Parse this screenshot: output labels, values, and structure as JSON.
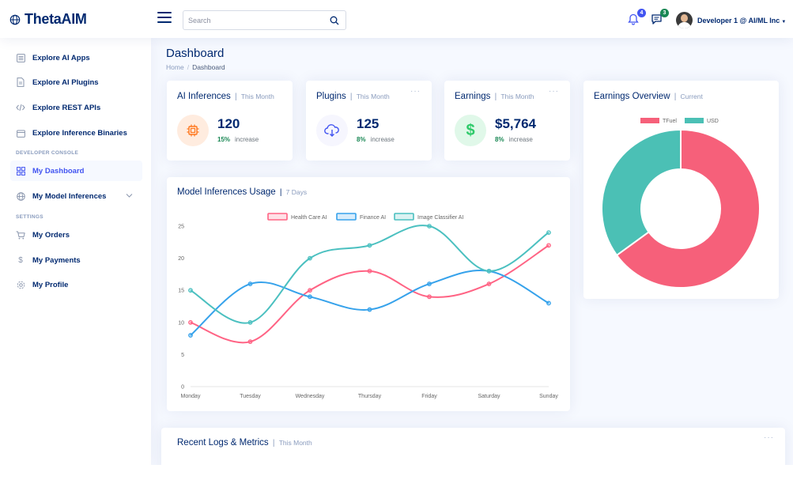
{
  "header": {
    "logo_text": "ThetaAIM",
    "search_placeholder": "Search",
    "notifications_count": "4",
    "messages_count": "3",
    "user_name": "Developer 1 @ AI/ML Inc"
  },
  "sidebar": {
    "items": [
      {
        "label": "Explore AI Apps"
      },
      {
        "label": "Explore AI Plugins"
      },
      {
        "label": "Explore REST APIs"
      },
      {
        "label": "Explore Inference Binaries"
      }
    ],
    "heading_developer": "DEVELOPER CONSOLE",
    "dev_items": [
      {
        "label": "My Dashboard"
      },
      {
        "label": "My Model Inferences"
      }
    ],
    "heading_settings": "SETTINGS",
    "settings_items": [
      {
        "label": "My Orders"
      },
      {
        "label": "My Payments"
      },
      {
        "label": "My Profile"
      }
    ]
  },
  "page": {
    "title": "Dashboard",
    "breadcrumb": [
      "Home",
      "Dashboard"
    ]
  },
  "cards": {
    "inferences": {
      "title": "AI Inferences",
      "period": "This Month",
      "value": "120",
      "pct": "15%",
      "trend": "increase"
    },
    "plugins": {
      "title": "Plugins",
      "period": "This Month",
      "value": "125",
      "pct": "8%",
      "trend": "increase"
    },
    "earnings": {
      "title": "Earnings",
      "period": "This Month",
      "value": "$5,764",
      "pct": "8%",
      "trend": "increase"
    }
  },
  "usage": {
    "title": "Model Inferences Usage",
    "period": "7 Days"
  },
  "overview": {
    "title": "Earnings Overview",
    "period": "Current"
  },
  "logs": {
    "title": "Recent Logs & Metrics",
    "period": "This Month"
  },
  "colors": {
    "primary": "#012970",
    "accent": "#4154f1",
    "health": "#ff6384",
    "finance": "#36a2eb",
    "classifier": "#4bc0c0",
    "success": "#198754"
  },
  "chart_data": [
    {
      "type": "line",
      "categories": [
        "Monday",
        "Tuesday",
        "Wednesday",
        "Thursday",
        "Friday",
        "Saturday",
        "Sunday"
      ],
      "ylim": [
        0,
        25
      ],
      "yticks": [
        0,
        5,
        10,
        15,
        20,
        25
      ],
      "legend": "top",
      "grid": false,
      "series": [
        {
          "name": "Health Care AI",
          "color": "#ff6384",
          "values": [
            10,
            7,
            15,
            18,
            14,
            16,
            22
          ]
        },
        {
          "name": "Finance AI",
          "color": "#36a2eb",
          "values": [
            8,
            16,
            14,
            12,
            16,
            18,
            13
          ]
        },
        {
          "name": "Image Classifier AI",
          "color": "#4bc0c0",
          "values": [
            15,
            10,
            20,
            22,
            25,
            18,
            24
          ]
        }
      ]
    },
    {
      "type": "pie",
      "variant": "doughnut",
      "legend": "top",
      "labels": [
        "TFuel",
        "USD"
      ],
      "values": [
        65,
        35
      ],
      "colors": [
        "#f6607a",
        "#4bc0b5"
      ]
    }
  ]
}
